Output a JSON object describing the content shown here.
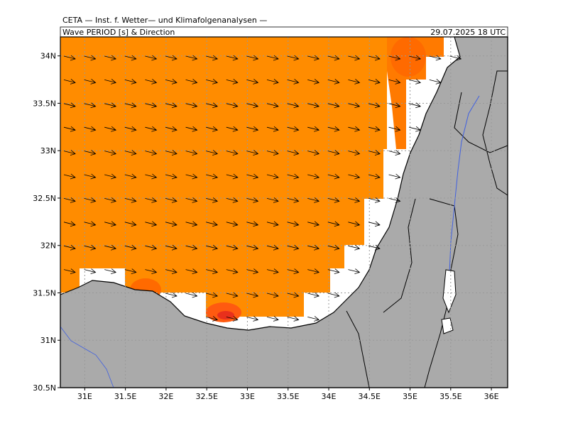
{
  "header": {
    "source": "CETA — Inst. f. Wetter— und Klimafolgenanalysen —",
    "title": "Wave PERIOD [s] & Direction",
    "date": "29.07.2025 18 UTC"
  },
  "map": {
    "lonlim": [
      30.7,
      36.2
    ],
    "latlim": [
      30.5,
      34.2
    ],
    "lon_ticks": [
      {
        "value": 31,
        "label": "31E"
      },
      {
        "value": 31.5,
        "label": "31.5E"
      },
      {
        "value": 32,
        "label": "32E"
      },
      {
        "value": 32.5,
        "label": "32.5E"
      },
      {
        "value": 33,
        "label": "33E"
      },
      {
        "value": 33.5,
        "label": "33.5E"
      },
      {
        "value": 34,
        "label": "34E"
      },
      {
        "value": 34.5,
        "label": "34.5E"
      },
      {
        "value": 35,
        "label": "35E"
      },
      {
        "value": 35.5,
        "label": "35.5E"
      },
      {
        "value": 36,
        "label": "36E"
      }
    ],
    "lat_ticks": [
      {
        "value": 30.5,
        "label": "30.5N"
      },
      {
        "value": 31,
        "label": "31N"
      },
      {
        "value": 31.5,
        "label": "31.5N"
      },
      {
        "value": 32,
        "label": "32N"
      },
      {
        "value": 32.5,
        "label": "32.5N"
      },
      {
        "value": 33,
        "label": "33N"
      },
      {
        "value": 33.5,
        "label": "33.5N"
      },
      {
        "value": 34,
        "label": "34N"
      }
    ]
  }
}
